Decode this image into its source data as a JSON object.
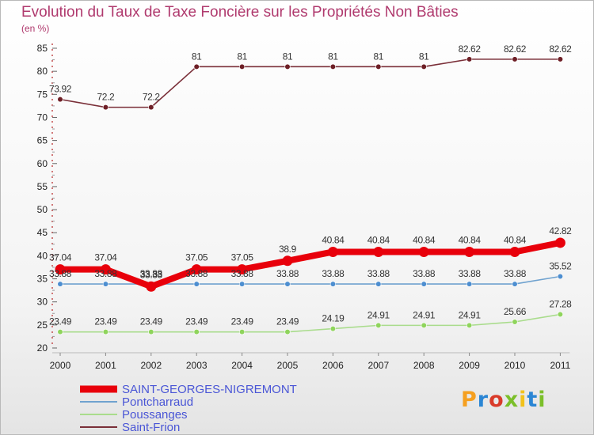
{
  "chart_data": {
    "type": "line",
    "title": "Evolution du Taux de Taxe Foncière sur les Propriétés Non Bâties",
    "ylabel": "(en %)",
    "xlabel": "",
    "ylim": [
      20,
      85
    ],
    "yticks": [
      20,
      25,
      30,
      35,
      40,
      45,
      50,
      55,
      60,
      65,
      70,
      75,
      80,
      85
    ],
    "categories": [
      "2000",
      "2001",
      "2002",
      "2003",
      "2004",
      "2005",
      "2006",
      "2007",
      "2008",
      "2009",
      "2010",
      "2011"
    ],
    "series": [
      {
        "name": "SAINT-GEORGES-NIGREMONT",
        "color": "#e8000b",
        "marker_color": "#e8000b",
        "emphasis": true,
        "values": [
          37.04,
          37.04,
          33.33,
          37.05,
          37.05,
          38.9,
          40.84,
          40.84,
          40.84,
          40.84,
          40.84,
          42.82
        ],
        "labels": [
          "37.04",
          "37.04",
          "33.33",
          "37.05",
          "37.05",
          "38.9",
          "40.84",
          "40.84",
          "40.84",
          "40.84",
          "40.84",
          "42.82"
        ]
      },
      {
        "name": "Pontcharraud",
        "color": "#6fa2cf",
        "marker_color": "#4d8ed0",
        "values": [
          33.88,
          33.88,
          33.88,
          33.88,
          33.88,
          33.88,
          33.88,
          33.88,
          33.88,
          33.88,
          33.88,
          35.52
        ],
        "labels": [
          "33.88",
          "33.88",
          "33.88",
          "33.88",
          "33.88",
          "33.88",
          "33.88",
          "33.88",
          "33.88",
          "33.88",
          "33.88",
          "35.52"
        ]
      },
      {
        "name": "Poussanges",
        "color": "#a9dc8c",
        "marker_color": "#8fd45c",
        "values": [
          23.49,
          23.49,
          23.49,
          23.49,
          23.49,
          23.49,
          24.19,
          24.91,
          24.91,
          24.91,
          25.66,
          27.28
        ],
        "labels": [
          "23.49",
          "23.49",
          "23.49",
          "23.49",
          "23.49",
          "23.49",
          "24.19",
          "24.91",
          "24.91",
          "24.91",
          "25.66",
          "27.28"
        ]
      },
      {
        "name": "Saint-Frion",
        "color": "#7a2f38",
        "marker_color": "#6e1f26",
        "values": [
          73.92,
          72.2,
          72.2,
          81,
          81,
          81,
          81,
          81,
          81,
          82.62,
          82.62,
          82.62
        ],
        "labels": [
          "73.92",
          "72.2",
          "72.2",
          "81",
          "81",
          "81",
          "81",
          "81",
          "81",
          "82.62",
          "82.62",
          "82.62"
        ]
      }
    ],
    "legend_position": "bottom-left"
  },
  "logo": {
    "text": "Proxiti",
    "parts": [
      "P",
      "r",
      "o",
      "x",
      "i",
      "t",
      "i"
    ]
  }
}
